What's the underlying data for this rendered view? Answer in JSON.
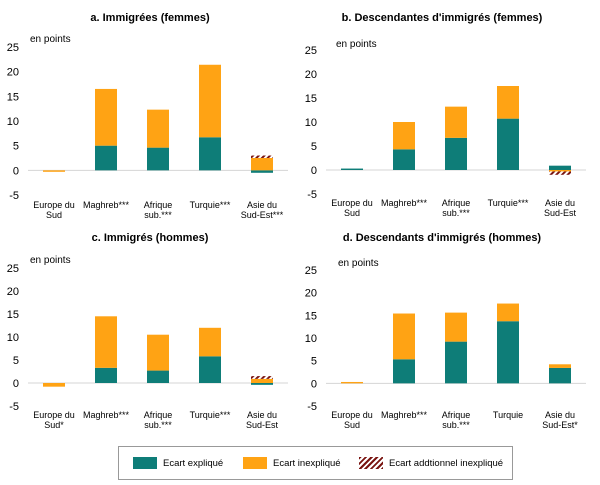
{
  "chart_data": [
    {
      "type": "bar",
      "title": "a. Immigrées (femmes)",
      "ylabel": "en points",
      "ylim": [
        -5,
        25
      ],
      "yticks": [
        -5,
        0,
        5,
        10,
        15,
        20,
        25
      ],
      "categories": [
        "Europe du Sud",
        "Maghreb***",
        "Afrique sub.***",
        "Turquie***",
        "Asie du Sud-Est***"
      ],
      "series": [
        {
          "name": "Ecart expliqué",
          "values": [
            0.0,
            5.0,
            4.6,
            6.7,
            -0.5
          ]
        },
        {
          "name": "Ecart inexpliqué",
          "values": [
            -0.3,
            11.5,
            7.7,
            14.7,
            2.5
          ]
        },
        {
          "name": "Ecart addtionnel inexpliqué",
          "values": [
            0.0,
            0.0,
            0.0,
            0.0,
            0.5
          ]
        }
      ]
    },
    {
      "type": "bar",
      "title": "b. Descendantes d'immigrés (femmes)",
      "ylabel": "en points",
      "ylim": [
        -5,
        25
      ],
      "yticks": [
        -5,
        0,
        5,
        10,
        15,
        20,
        25
      ],
      "categories": [
        "Europe du Sud",
        "Maghreb***",
        "Afrique sub.***",
        "Turquie***",
        "Asie du Sud-Est"
      ],
      "series": [
        {
          "name": "Ecart expliqué",
          "values": [
            0.3,
            4.3,
            6.7,
            10.7,
            0.9
          ]
        },
        {
          "name": "Ecart inexpliqué",
          "values": [
            0.0,
            5.7,
            6.5,
            6.8,
            -0.3
          ]
        },
        {
          "name": "Ecart addtionnel inexpliqué",
          "values": [
            0.0,
            0.0,
            0.0,
            0.0,
            -0.7
          ]
        }
      ]
    },
    {
      "type": "bar",
      "title": "c. Immigrés (hommes)",
      "ylabel": "en points",
      "ylim": [
        -5,
        25
      ],
      "yticks": [
        -5,
        0,
        5,
        10,
        15,
        20,
        25
      ],
      "categories": [
        "Europe du Sud*",
        "Maghreb***",
        "Afrique sub.***",
        "Turquie***",
        "Asie du Sud-Est"
      ],
      "series": [
        {
          "name": "Ecart expliqué",
          "values": [
            0.0,
            3.3,
            2.7,
            5.8,
            -0.4
          ]
        },
        {
          "name": "Ecart inexpliqué",
          "values": [
            -0.8,
            11.2,
            7.8,
            6.2,
            0.9
          ]
        },
        {
          "name": "Ecart addtionnel inexpliqué",
          "values": [
            0.0,
            0.0,
            0.0,
            0.0,
            0.6
          ]
        }
      ]
    },
    {
      "type": "bar",
      "title": "d. Descendants d'immigrés (hommes)",
      "ylabel": "en points",
      "ylim": [
        -5,
        25
      ],
      "yticks": [
        -5,
        0,
        5,
        10,
        15,
        20,
        25
      ],
      "categories": [
        "Europe du Sud",
        "Maghreb***",
        "Afrique sub.***",
        "Turquie",
        "Asie du Sud-Est*"
      ],
      "series": [
        {
          "name": "Ecart expliqué",
          "values": [
            0.0,
            5.3,
            9.2,
            13.7,
            3.4
          ]
        },
        {
          "name": "Ecart inexpliqué",
          "values": [
            0.3,
            10.1,
            6.4,
            3.9,
            0.8
          ]
        },
        {
          "name": "Ecart addtionnel inexpliqué",
          "values": [
            0.0,
            0.0,
            0.0,
            0.0,
            0.0
          ]
        }
      ]
    }
  ],
  "colors": {
    "explique": "#0e7d78",
    "inexplique": "#ffa314",
    "additionnel": "#7a1512"
  },
  "legend": {
    "explique": "Ecart expliqué",
    "inexplique": "Ecart inexpliqué",
    "additionnel": "Ecart addtionnel inexpliqué"
  }
}
